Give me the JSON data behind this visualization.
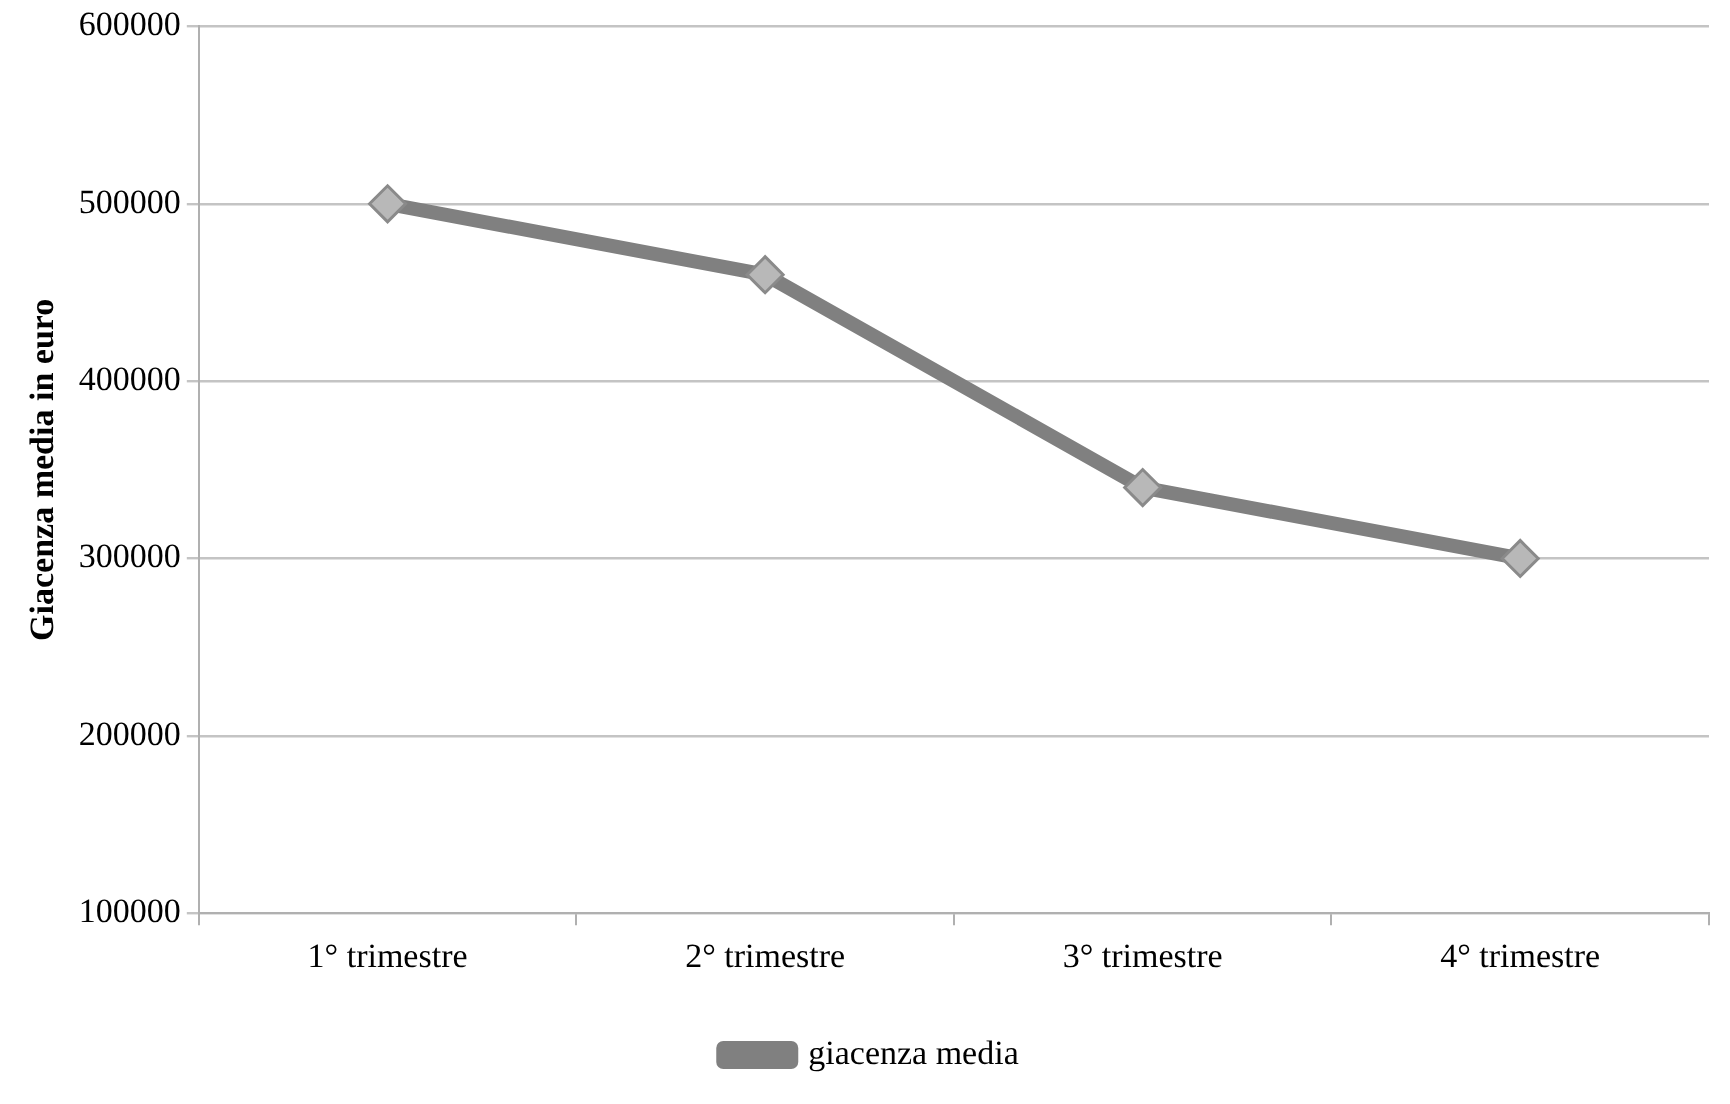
{
  "chart_data": {
    "type": "line",
    "ylabel": "Giacenza media in euro",
    "categories": [
      "1° trimestre",
      "2° trimestre",
      "3° trimestre",
      "4° trimestre"
    ],
    "series": [
      {
        "name": "giacenza media",
        "color": "#808080",
        "values": [
          500000,
          460000,
          340000,
          300000
        ]
      }
    ],
    "ylim": [
      100000,
      600000
    ],
    "yticks": [
      100000,
      200000,
      300000,
      400000,
      500000,
      600000
    ],
    "grid": "y",
    "legend": "bottom",
    "marker": "diamond",
    "line_style": "solid"
  }
}
